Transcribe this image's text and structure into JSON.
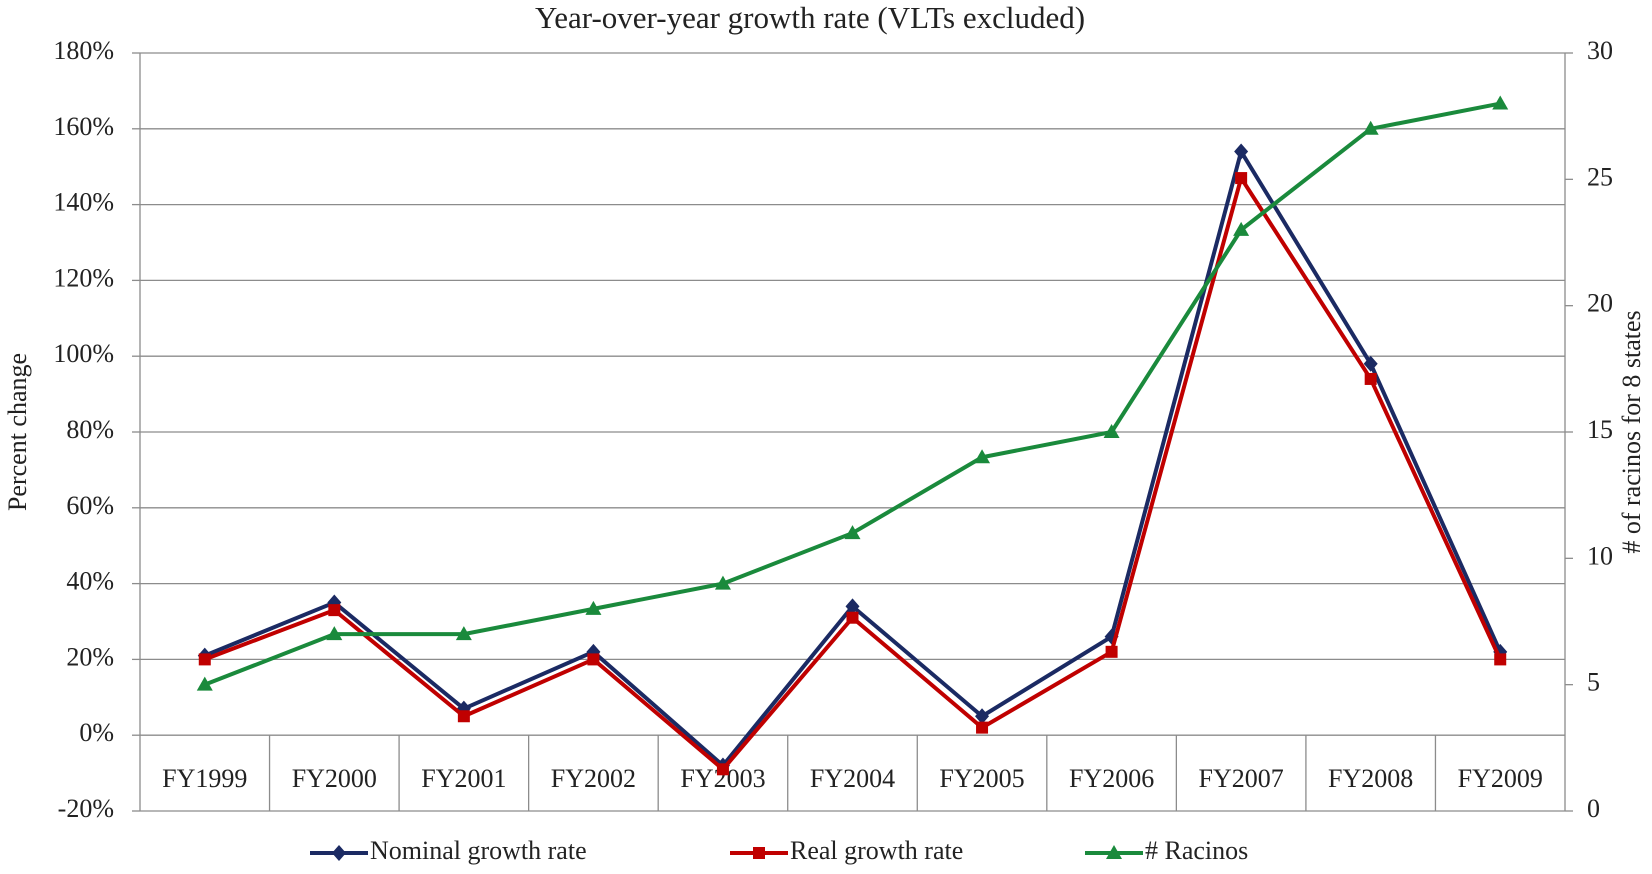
{
  "chart_data": {
    "type": "line",
    "title": "Year-over-year growth rate (VLTs excluded)",
    "y_label": "Percent change",
    "y2_label": "# of racinos for 8 states",
    "categories": [
      "FY1999",
      "FY2000",
      "FY2001",
      "FY2002",
      "FY2003",
      "FY2004",
      "FY2005",
      "FY2006",
      "FY2007",
      "FY2008",
      "FY2009"
    ],
    "series": [
      {
        "name": "Nominal growth rate",
        "color": "#1b2a63",
        "marker": "diamond",
        "values": [
          21,
          35,
          7,
          22,
          -8,
          34,
          5,
          26,
          154,
          98,
          22
        ]
      },
      {
        "name": "Real growth rate",
        "color": "#c00000",
        "marker": "square",
        "values": [
          20,
          33,
          5,
          20,
          -9,
          31,
          2,
          22,
          147,
          94,
          20
        ]
      },
      {
        "name": "# Racinos",
        "color": "#1a8a3c",
        "marker": "triangle",
        "axis": "y2",
        "values": [
          5,
          7,
          7,
          8,
          9,
          11,
          14,
          15,
          23,
          27,
          28
        ]
      }
    ],
    "ylim": [
      -20,
      180
    ],
    "yticks": [
      {
        "value": -20,
        "label": "-20%"
      },
      {
        "value": 0,
        "label": "0%"
      },
      {
        "value": 20,
        "label": "20%"
      },
      {
        "value": 40,
        "label": "40%"
      },
      {
        "value": 60,
        "label": "60%"
      },
      {
        "value": 80,
        "label": "80%"
      },
      {
        "value": 100,
        "label": "100%"
      },
      {
        "value": 120,
        "label": "120%"
      },
      {
        "value": 140,
        "label": "140%"
      },
      {
        "value": 160,
        "label": "160%"
      },
      {
        "value": 180,
        "label": "180%"
      }
    ],
    "y2lim": [
      0,
      30
    ],
    "y2ticks": [
      0,
      5,
      10,
      15,
      20,
      25,
      30
    ],
    "grid": true,
    "legend": "bottom"
  }
}
